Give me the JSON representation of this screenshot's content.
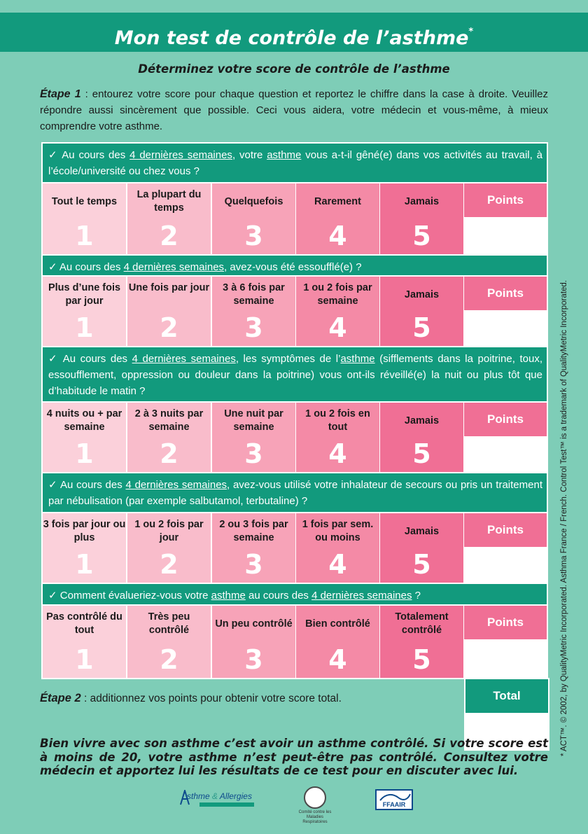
{
  "title": "Mon test de contrôle de l’asthme",
  "title_mark": "*",
  "subtitle": "Déterminez votre score de contrôle de l’asthme",
  "step1_label": "Étape 1",
  "step1_text": " : entourez votre score pour chaque question et reportez le chiffre dans la case à droite. Veuillez répondre aussi sincèrement que possible. Ceci vous aidera, votre médecin et vous-même, à mieux comprendre votre asthme.",
  "points_label": "Points",
  "questions": [
    {
      "parts": [
        "✓ Au cours des ",
        "4 dernières semaines",
        ", votre ",
        "asthme",
        " vous a-t-il gêné(e) dans vos activités au travail, à l’école/université ou chez vous ?"
      ],
      "answers": [
        {
          "label": "Tout le temps",
          "score": "1"
        },
        {
          "label": "La plupart du temps",
          "score": "2"
        },
        {
          "label": "Quelquefois",
          "score": "3"
        },
        {
          "label": "Rarement",
          "score": "4"
        },
        {
          "label": "Jamais",
          "score": "5"
        }
      ]
    },
    {
      "parts": [
        "✓ Au cours des ",
        "4 dernières semaines",
        ", avez-vous été essoufflé(e) ?"
      ],
      "answers": [
        {
          "label": "Plus d’une fois par jour",
          "score": "1"
        },
        {
          "label": "Une fois par jour",
          "score": "2"
        },
        {
          "label": "3 à 6 fois par semaine",
          "score": "3"
        },
        {
          "label": "1 ou 2 fois par semaine",
          "score": "4"
        },
        {
          "label": "Jamais",
          "score": "5"
        }
      ]
    },
    {
      "parts": [
        "✓ Au cours des ",
        "4 dernières semaines",
        ", les symptômes de l’",
        "asthme",
        " (sifflements dans la poitrine, toux, essoufflement, oppression ou douleur dans la poitrine) vous ont-ils réveillé(e) la nuit ou plus tôt que d’habitude le matin ?"
      ],
      "answers": [
        {
          "label": "4 nuits ou + par semaine",
          "score": "1"
        },
        {
          "label": "2 à 3 nuits par semaine",
          "score": "2"
        },
        {
          "label": "Une nuit par semaine",
          "score": "3"
        },
        {
          "label": "1 ou 2 fois en tout",
          "score": "4"
        },
        {
          "label": "Jamais",
          "score": "5"
        }
      ]
    },
    {
      "parts": [
        "✓ Au cours des ",
        "4 dernières semaines",
        ", avez-vous utilisé votre inhalateur de secours ou pris un traitement par nébulisation (par exemple salbutamol, terbutaline) ?"
      ],
      "answers": [
        {
          "label": "3 fois par jour ou plus",
          "score": "1"
        },
        {
          "label": "1 ou 2 fois par jour",
          "score": "2"
        },
        {
          "label": "2 ou 3 fois par semaine",
          "score": "3"
        },
        {
          "label": "1 fois par sem. ou moins",
          "score": "4"
        },
        {
          "label": "Jamais",
          "score": "5"
        }
      ]
    },
    {
      "parts": [
        "✓ Comment évalueriez-vous votre ",
        "asthme",
        " au cours des ",
        "4 dernières semaines",
        " ?"
      ],
      "answers": [
        {
          "label": "Pas contrôlé du tout",
          "score": "1"
        },
        {
          "label": "Très peu contrôlé",
          "score": "2"
        },
        {
          "label": "Un peu contrôlé",
          "score": "3"
        },
        {
          "label": "Bien contrôlé",
          "score": "4"
        },
        {
          "label": "Totalement contrôlé",
          "score": "5"
        }
      ]
    }
  ],
  "step2_label": "Étape 2",
  "step2_text": " : additionnez vos points pour obtenir votre score total.",
  "total_label": "Total",
  "closing_text": "Bien vivre avec son asthme c’est avoir un asthme contrôlé. Si votre score est à moins de 20, votre asthme n’est peut-être pas contrôlé. Consultez votre médecin et apportez lui les résultats de ce test pour en discuter avec lui.",
  "copyright": "* ACT™. © 2002, by QualityMetric Incorporated. Asthma France / French. Control Test™ is a trademark of QualityMetric Incorporated.",
  "logos": {
    "asthme_allergies_a": "sthme",
    "asthme_allergies_amp": " & ",
    "asthme_allergies_b": "Allergies",
    "cml_text": "Comité contre les Maladies Respiratoires",
    "ffaair_text": "FFAAIR"
  }
}
